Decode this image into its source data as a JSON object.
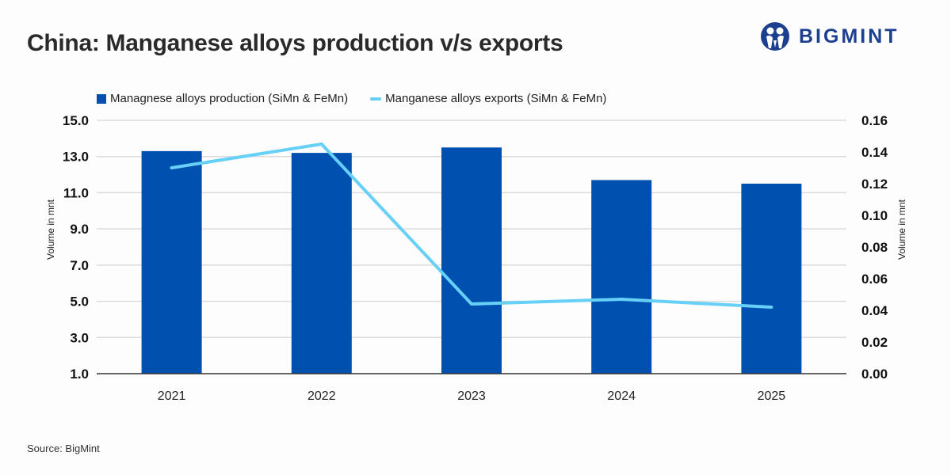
{
  "header": {
    "title": "China: Manganese alloys production v/s exports",
    "logo_text": "BIGMINT"
  },
  "legend": {
    "items": [
      {
        "label": "Managnese alloys production (SiMn & FeMn)",
        "type": "bar",
        "color": "#0050b0"
      },
      {
        "label": "Manganese alloys exports (SiMn & FeMn)",
        "type": "line",
        "color": "#66d0f6"
      }
    ]
  },
  "footer": {
    "source": "Source: BigMint"
  },
  "chart_data": {
    "type": "bar",
    "title": "China: Manganese alloys production v/s exports",
    "categories": [
      "2021",
      "2022",
      "2023",
      "2024",
      "2025"
    ],
    "series": [
      {
        "name": "Managnese alloys production (SiMn & FeMn)",
        "type": "bar",
        "axis": "left",
        "color": "#0050b0",
        "values": [
          13.3,
          13.2,
          13.5,
          11.7,
          11.5
        ]
      },
      {
        "name": "Manganese alloys exports (SiMn & FeMn)",
        "type": "line",
        "axis": "right",
        "color": "#66d0f6",
        "values": [
          0.13,
          0.145,
          0.044,
          0.047,
          0.042
        ]
      }
    ],
    "xlabel": "",
    "ylabel": "Volume in mnt",
    "ylabel_right": "Volume in mnt",
    "ylim": [
      1.0,
      15.0
    ],
    "ylim_right": [
      0.0,
      0.16
    ],
    "yticks": [
      "1.0",
      "3.0",
      "5.0",
      "7.0",
      "9.0",
      "11.0",
      "13.0",
      "15.0"
    ],
    "yticks_right": [
      "0.00",
      "0.02",
      "0.04",
      "0.06",
      "0.08",
      "0.10",
      "0.12",
      "0.14",
      "0.16"
    ],
    "grid": true,
    "legend_position": "top"
  }
}
